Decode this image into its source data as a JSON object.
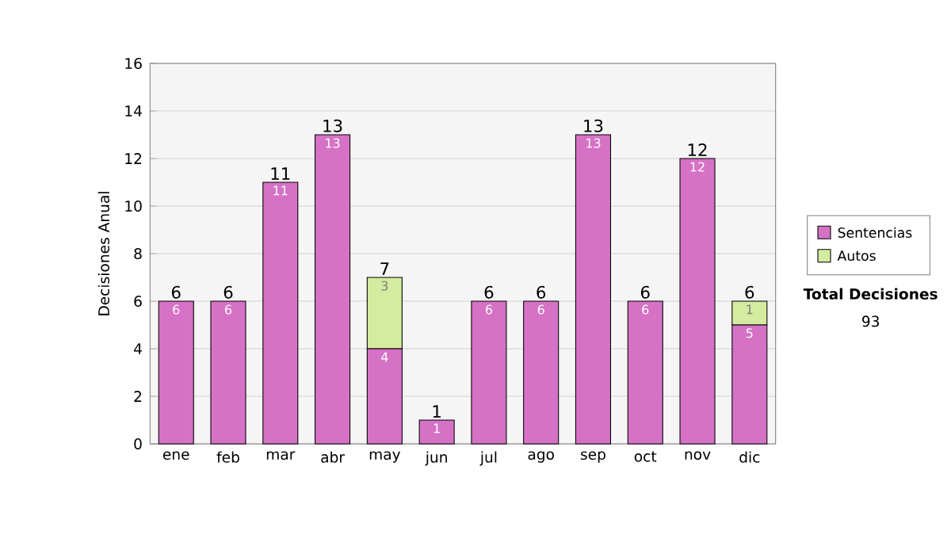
{
  "chart_data": {
    "type": "bar",
    "stacked": true,
    "ylabel": "Decisiones Anual",
    "categories": [
      "ene",
      "feb",
      "mar",
      "abr",
      "may",
      "jun",
      "jul",
      "ago",
      "sep",
      "oct",
      "nov",
      "dic"
    ],
    "series": [
      {
        "name": "Sentencias",
        "color": "#d672c6",
        "values": [
          6,
          6,
          11,
          13,
          4,
          1,
          6,
          6,
          13,
          6,
          12,
          5
        ],
        "value_labels": [
          "6",
          "6",
          "11",
          "13",
          "4",
          "1",
          "6",
          "6",
          "13",
          "6",
          "12",
          "5"
        ]
      },
      {
        "name": "Autos",
        "color": "#d4eba0",
        "values": [
          0,
          0,
          0,
          0,
          3,
          0,
          0,
          0,
          0,
          0,
          0,
          1
        ],
        "value_labels": [
          null,
          null,
          null,
          null,
          "3",
          null,
          null,
          null,
          null,
          null,
          null,
          "1"
        ]
      }
    ],
    "totals": [
      "6",
      "6",
      "11",
      "13",
      "7",
      "1",
      "6",
      "6",
      "13",
      "6",
      "12",
      "6"
    ],
    "ylim": [
      0,
      16
    ],
    "yticks": [
      0,
      2,
      4,
      6,
      8,
      10,
      12,
      14,
      16
    ],
    "grid": "y",
    "legend": "right",
    "annotations": [
      "Total Decisiones",
      "93"
    ]
  }
}
